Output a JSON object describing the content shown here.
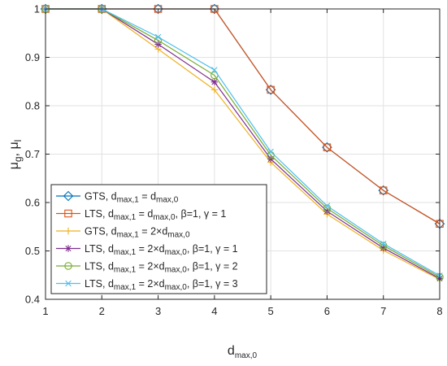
{
  "chart_data": {
    "type": "line",
    "xlabel": "d",
    "xlabel_sub": "max,0",
    "ylabel_parts": [
      "μ",
      "g",
      ", μ",
      "l"
    ],
    "xlim": [
      1,
      8
    ],
    "ylim": [
      0.4,
      1.0
    ],
    "x_ticks": [
      1,
      2,
      3,
      4,
      5,
      6,
      7,
      8
    ],
    "y_ticks": [
      0.4,
      0.5,
      0.6,
      0.7,
      0.8,
      0.9,
      1
    ],
    "grid": true,
    "legend_placement": "bottom-left",
    "x": [
      1,
      2,
      3,
      4,
      5,
      6,
      7,
      8
    ],
    "series": [
      {
        "legend_parts": [
          [
            "GTS, d",
            ""
          ],
          [
            "max,1",
            "sub"
          ],
          [
            " = d",
            ""
          ],
          [
            "max,0",
            "sub"
          ]
        ],
        "color": "#0072BD",
        "marker": "diamond",
        "values": [
          1.0,
          1.0,
          1.0,
          1.0,
          0.833,
          0.714,
          0.625,
          0.556
        ]
      },
      {
        "legend_parts": [
          [
            "LTS, d",
            ""
          ],
          [
            "max,1",
            "sub"
          ],
          [
            " = d",
            ""
          ],
          [
            "max,0",
            "sub"
          ],
          [
            ", β=1, γ = 1",
            ""
          ]
        ],
        "color": "#D95319",
        "marker": "square",
        "values": [
          1.0,
          1.0,
          1.0,
          1.0,
          0.833,
          0.714,
          0.625,
          0.556
        ]
      },
      {
        "legend_parts": [
          [
            "GTS, d",
            ""
          ],
          [
            "max,1",
            "sub"
          ],
          [
            " = 2×d",
            ""
          ],
          [
            "max,0",
            "sub"
          ]
        ],
        "color": "#EDB120",
        "marker": "plus",
        "values": [
          1.0,
          1.0,
          0.917,
          0.833,
          0.683,
          0.576,
          0.501,
          0.441
        ]
      },
      {
        "legend_parts": [
          [
            "LTS, d",
            ""
          ],
          [
            "max,1",
            "sub"
          ],
          [
            " = 2×d",
            ""
          ],
          [
            "max,0",
            "sub"
          ],
          [
            ", β=1, γ = 1",
            ""
          ]
        ],
        "color": "#7E2F8E",
        "marker": "asterisk",
        "values": [
          1.0,
          1.0,
          0.927,
          0.849,
          0.69,
          0.582,
          0.506,
          0.443
        ]
      },
      {
        "legend_parts": [
          [
            "LTS, d",
            ""
          ],
          [
            "max,1",
            "sub"
          ],
          [
            " = 2×d",
            ""
          ],
          [
            "max,0",
            "sub"
          ],
          [
            ", β=1, γ = 2",
            ""
          ]
        ],
        "color": "#77AC30",
        "marker": "circle",
        "values": [
          1.0,
          1.0,
          0.935,
          0.863,
          0.698,
          0.588,
          0.511,
          0.446
        ]
      },
      {
        "legend_parts": [
          [
            "LTS, d",
            ""
          ],
          [
            "max,1",
            "sub"
          ],
          [
            " = 2×d",
            ""
          ],
          [
            "max,0",
            "sub"
          ],
          [
            ", β=1, γ = 3",
            ""
          ]
        ],
        "color": "#4DBEEE",
        "marker": "cross",
        "values": [
          1.0,
          1.0,
          0.942,
          0.874,
          0.705,
          0.593,
          0.515,
          0.449
        ]
      }
    ]
  }
}
